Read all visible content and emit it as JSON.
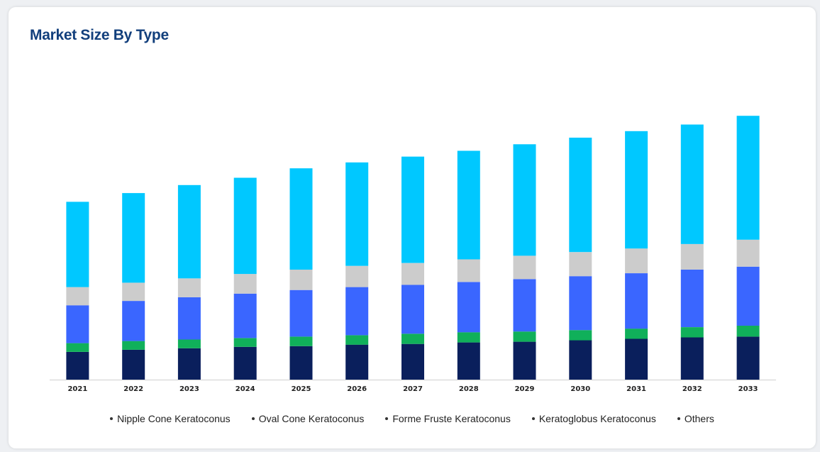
{
  "title": "Market Size By Type",
  "chart_data": {
    "type": "bar",
    "stacked": true,
    "title": "Market Size By Type",
    "xlabel": "",
    "ylabel": "",
    "ylim": [
      0,
      370
    ],
    "grid": false,
    "legend_position": "bottom",
    "categories": [
      "2021",
      "2022",
      "2023",
      "2024",
      "2025",
      "2026",
      "2027",
      "2028",
      "2029",
      "2030",
      "2031",
      "2032",
      "2033"
    ],
    "series": [
      {
        "name": "Nipple Cone Keratoconus",
        "color": "#0a1f5c",
        "values": [
          38,
          41,
          43,
          45,
          46,
          48,
          49,
          51,
          52,
          54,
          56,
          58,
          59
        ]
      },
      {
        "name": "Oval Cone Keratoconus",
        "color": "#10b05a",
        "values": [
          12,
          12,
          12,
          12,
          13,
          13,
          14,
          14,
          14,
          14,
          14,
          14,
          15
        ]
      },
      {
        "name": "Forme Fruste Keratoconus",
        "color": "#3a66ff",
        "values": [
          52,
          55,
          58,
          61,
          64,
          66,
          67,
          69,
          72,
          74,
          76,
          79,
          81
        ]
      },
      {
        "name": "Keratoglobus Keratoconus",
        "color": "#cccccc",
        "values": [
          25,
          25,
          26,
          27,
          28,
          29,
          30,
          31,
          32,
          33,
          34,
          35,
          37
        ]
      },
      {
        "name": "Others",
        "color": "#00c8ff",
        "values": [
          117,
          123,
          128,
          132,
          139,
          142,
          146,
          149,
          153,
          157,
          161,
          164,
          170
        ]
      }
    ]
  }
}
